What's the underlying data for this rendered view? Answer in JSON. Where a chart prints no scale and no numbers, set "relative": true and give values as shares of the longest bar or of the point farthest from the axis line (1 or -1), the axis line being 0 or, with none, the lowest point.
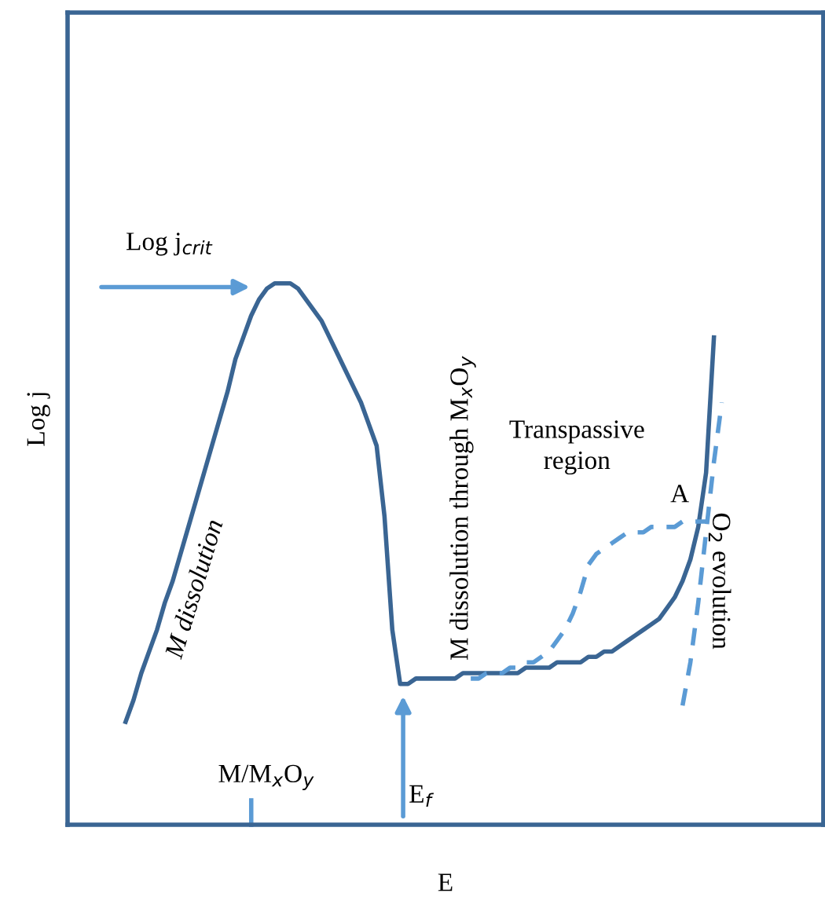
{
  "chart_data": {
    "type": "line",
    "relative": true,
    "tick_labels": false,
    "xlabel": "E",
    "ylabel": "Log j",
    "categories": [
      null,
      null,
      null,
      null,
      null,
      null,
      null,
      null,
      null,
      null,
      null,
      null,
      null,
      null,
      null,
      null,
      null,
      null,
      null,
      null,
      null,
      null,
      null,
      null,
      null,
      null,
      null,
      null,
      null,
      null,
      null,
      null,
      null,
      null,
      null,
      null,
      null,
      null,
      null,
      null,
      null,
      null,
      null,
      null,
      null,
      null,
      null,
      null,
      null,
      null,
      null,
      null,
      null,
      null,
      null,
      null,
      null,
      null,
      null,
      null,
      null,
      null,
      null,
      null,
      null,
      null,
      null,
      null,
      null,
      null,
      null,
      null,
      null,
      null,
      null,
      null,
      null
    ],
    "series": [
      {
        "color": "#3a6593",
        "line_style": "solid",
        "values": [
          0.19,
          0.23,
          0.28,
          0.32,
          0.36,
          0.41,
          0.45,
          0.5,
          0.55,
          0.6,
          0.65,
          0.7,
          0.75,
          0.8,
          0.86,
          0.9,
          0.94,
          0.97,
          0.99,
          1.0,
          1.0,
          1.0,
          0.99,
          0.97,
          0.95,
          0.93,
          0.9,
          0.87,
          0.84,
          0.81,
          0.78,
          0.74,
          0.7,
          0.57,
          0.36,
          0.26,
          0.26,
          0.27,
          0.27,
          0.27,
          0.27,
          0.27,
          0.27,
          0.28,
          0.28,
          0.28,
          0.28,
          0.28,
          0.28,
          0.28,
          0.28,
          0.29,
          0.29,
          0.29,
          0.29,
          0.3,
          0.3,
          0.3,
          0.3,
          0.31,
          0.31,
          0.32,
          0.32,
          0.33,
          0.34,
          0.35,
          0.36,
          0.37,
          0.38,
          0.4,
          0.42,
          0.45,
          0.49,
          0.55,
          0.65,
          0.9,
          null
        ]
      },
      {
        "color": "#5b9bd5",
        "line_style": "dashed",
        "values": [
          null,
          null,
          null,
          null,
          null,
          null,
          null,
          null,
          null,
          null,
          null,
          null,
          null,
          null,
          null,
          null,
          null,
          null,
          null,
          null,
          null,
          null,
          null,
          null,
          null,
          null,
          null,
          null,
          null,
          null,
          null,
          null,
          null,
          null,
          null,
          null,
          null,
          null,
          null,
          null,
          null,
          null,
          null,
          null,
          0.27,
          0.27,
          0.28,
          0.28,
          0.28,
          0.29,
          0.29,
          0.3,
          0.3,
          0.31,
          0.32,
          0.34,
          0.36,
          0.39,
          0.43,
          0.48,
          0.5,
          0.51,
          0.52,
          0.53,
          0.54,
          0.54,
          0.54,
          0.55,
          0.55,
          0.55,
          0.55,
          0.56,
          0.56,
          0.56,
          0.56,
          null,
          null
        ]
      },
      {
        "color": "#5b9bd5",
        "line_style": "dashed",
        "values": [
          null,
          null,
          null,
          null,
          null,
          null,
          null,
          null,
          null,
          null,
          null,
          null,
          null,
          null,
          null,
          null,
          null,
          null,
          null,
          null,
          null,
          null,
          null,
          null,
          null,
          null,
          null,
          null,
          null,
          null,
          null,
          null,
          null,
          null,
          null,
          null,
          null,
          null,
          null,
          null,
          null,
          null,
          null,
          null,
          null,
          null,
          null,
          null,
          null,
          null,
          null,
          null,
          null,
          null,
          null,
          null,
          null,
          null,
          null,
          null,
          null,
          null,
          null,
          null,
          null,
          null,
          null,
          null,
          null,
          null,
          null,
          0.22,
          0.3,
          0.41,
          0.54,
          0.67,
          0.78
        ]
      }
    ],
    "annotations": [
      "Log j$_{crit}$",
      "M dissolution",
      "M dissolution through M$_{x}$O$_{y}$",
      "Transpassive region",
      "A",
      "O$_{2}$ evolution",
      "E$_{f}$",
      "M/M$_{x}$O$_{y}$"
    ]
  }
}
